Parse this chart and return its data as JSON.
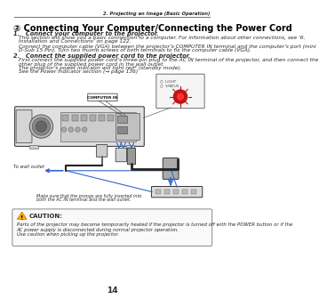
{
  "page_header_right": "2. Projecting an Image (Basic Operation)",
  "section_title": "② Connecting Your Computer/Connecting the Power Cord",
  "step1_title": "1.   Connect your computer to the projector.",
  "step1_body1": "This section will show you a basic connection to a computer. For information about other connections, see ‘6.",
  "step1_body2": "Installation and Connections’ on page 122.",
  "step1_body3": "Connect the computer cable (VGA) between the projector’s COMPUTER IN terminal and the computer’s port (mini",
  "step1_body4": "D-Sub 15 Pin). Turn two thumb screws of both terminals to fix the computer cable (VGA).",
  "step2_title": "2.   Connect the supplied power cord to the projector.",
  "step2_body1": "First connect the supplied power cord’s three-pin plug to the AC IN terminal of the projector, and then connect the",
  "step2_body2": "other plug of the supplied power cord in the wall outlet.",
  "step2_body3": "The projector’s power indicator will light red* (standby mode).",
  "step2_body4": "See the Power Indicator section (→ page 136)",
  "label_wall": "To wall outlet",
  "label_make_sure1": "Make sure that the prongs are fully inserted into",
  "label_make_sure2": "both the AC IN terminal and the wall outlet.",
  "caution_title": "CAUTION:",
  "caution_body1": "Parts of the projector may become temporarily heated if the projector is turned off with the POWER button or if the",
  "caution_body2": "AC power supply is disconnected during normal projector operation.",
  "caution_body3": "Use caution when picking up the projector.",
  "page_number": "14",
  "bg_color": "#ffffff",
  "text_color": "#2a2a2a",
  "header_line_color": "#5588bb",
  "title_color": "#000000",
  "diagram_bg": "#f0f0f0",
  "proj_face": "#e0e0e0",
  "proj_edge": "#444444"
}
